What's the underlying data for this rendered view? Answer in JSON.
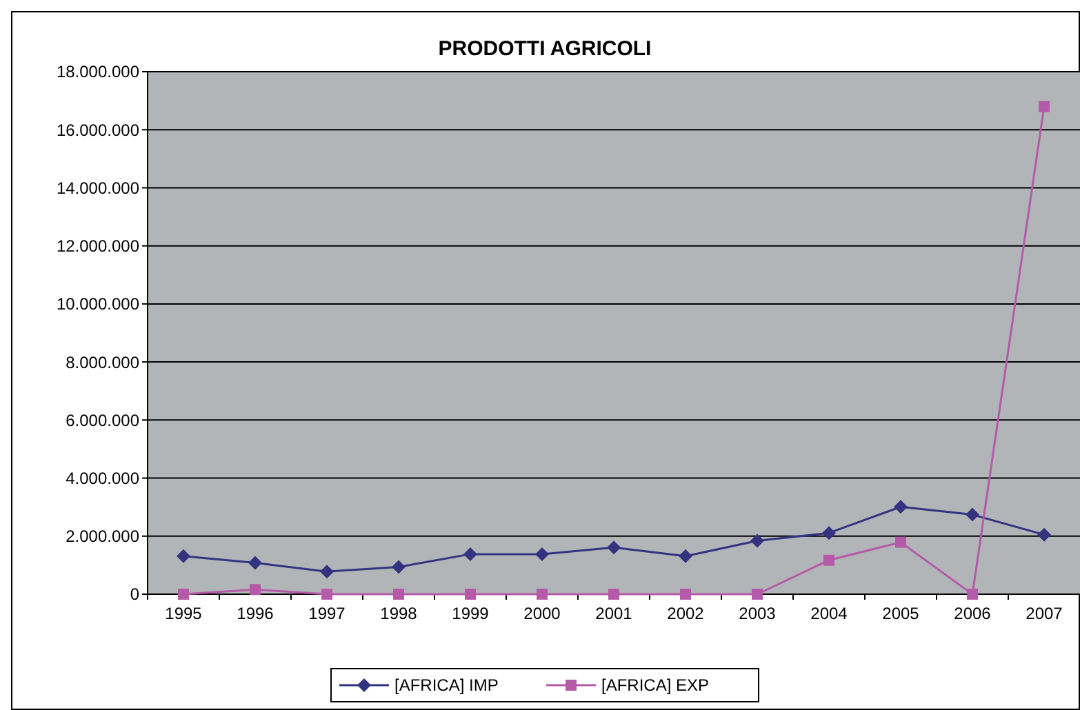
{
  "chart_data": {
    "type": "line",
    "title": "PRODOTTI AGRICOLI",
    "categories": [
      "1995",
      "1996",
      "1997",
      "1998",
      "1999",
      "2000",
      "2001",
      "2002",
      "2003",
      "2004",
      "2005",
      "2006",
      "2007"
    ],
    "series": [
      {
        "name": "[AFRICA] IMP",
        "color": "#333380",
        "marker": "diamond",
        "values": [
          1310000,
          1080000,
          780000,
          940000,
          1380000,
          1380000,
          1610000,
          1310000,
          1840000,
          2110000,
          3010000,
          2740000,
          2050000
        ]
      },
      {
        "name": "[AFRICA] EXP",
        "color": "#b45aa8",
        "marker": "square",
        "values": [
          0,
          160000,
          0,
          0,
          0,
          0,
          0,
          0,
          0,
          1170000,
          1790000,
          0,
          16800000
        ]
      }
    ],
    "ylim": [
      0,
      18000000
    ],
    "yticks": [
      {
        "value": 0,
        "label": "0"
      },
      {
        "value": 2000000,
        "label": "2.000.000"
      },
      {
        "value": 4000000,
        "label": "4.000.000"
      },
      {
        "value": 6000000,
        "label": "6.000.000"
      },
      {
        "value": 8000000,
        "label": "8.000.000"
      },
      {
        "value": 10000000,
        "label": "10.000.000"
      },
      {
        "value": 12000000,
        "label": "12.000.000"
      },
      {
        "value": 14000000,
        "label": "14.000.000"
      },
      {
        "value": 16000000,
        "label": "16.000.000"
      },
      {
        "value": 18000000,
        "label": "18.000.000"
      }
    ],
    "grid": "y",
    "legend": "bottom"
  }
}
